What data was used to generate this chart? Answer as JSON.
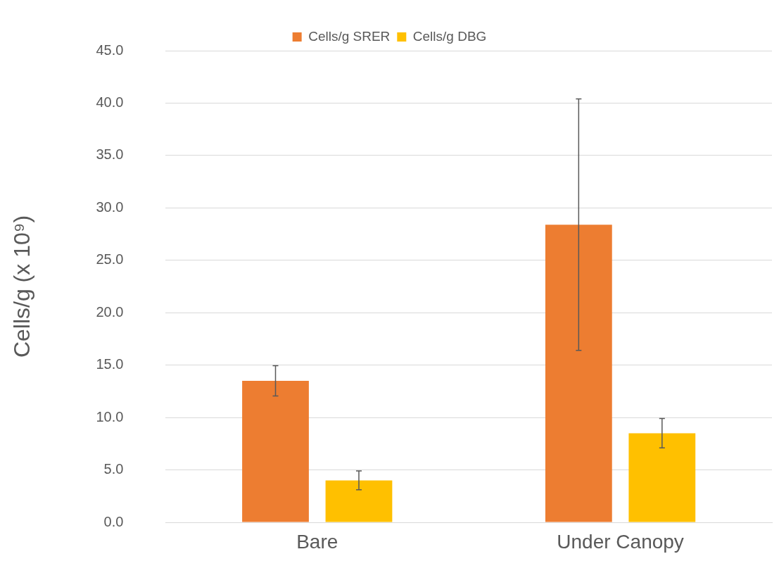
{
  "chart_data": {
    "type": "bar",
    "ylabel": "Cells/g (x 10⁹)",
    "categories": [
      "Bare",
      "Under Canopy"
    ],
    "series": [
      {
        "name": "Cells/g SRER",
        "color": "#ed7d31",
        "values": [
          13.5,
          28.4
        ],
        "errors": [
          1.45,
          12.0
        ]
      },
      {
        "name": "Cells/g DBG",
        "color": "#ffc000",
        "values": [
          4.0,
          8.5
        ],
        "errors": [
          0.9,
          1.4
        ]
      }
    ],
    "ylim": [
      0,
      45
    ],
    "yticks": [
      {
        "value": 0,
        "label": "0.0"
      },
      {
        "value": 5,
        "label": "5.0"
      },
      {
        "value": 10,
        "label": "10.0"
      },
      {
        "value": 15,
        "label": "15.0"
      },
      {
        "value": 20,
        "label": "20.0"
      },
      {
        "value": 25,
        "label": "25.0"
      },
      {
        "value": 30,
        "label": "30.0"
      },
      {
        "value": 35,
        "label": "35.0"
      },
      {
        "value": 40,
        "label": "40.0"
      },
      {
        "value": 45,
        "label": "45.0"
      }
    ],
    "grid": "y",
    "legend": "top"
  }
}
